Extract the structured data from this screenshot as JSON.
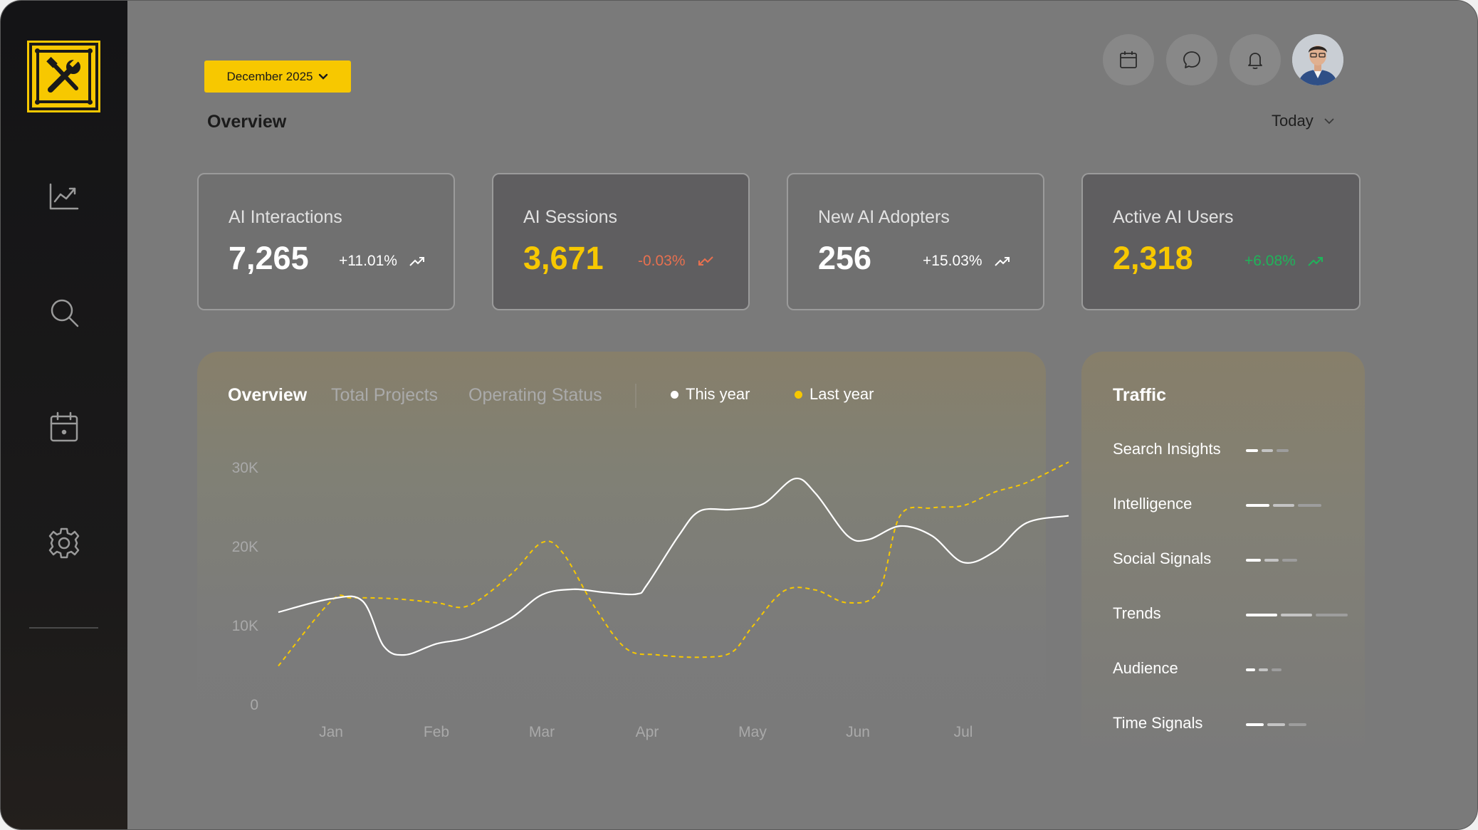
{
  "header": {
    "month_button": "December 2025",
    "page_title": "Overview",
    "period_select": "Today",
    "icons": [
      "calendar-icon",
      "chat-icon",
      "bell-icon"
    ],
    "avatar": "user-avatar"
  },
  "sidebar": {
    "logo": "tools-logo",
    "items": [
      {
        "icon": "chart-icon"
      },
      {
        "icon": "search-icon"
      },
      {
        "icon": "calendar-icon"
      },
      {
        "icon": "gear-icon"
      }
    ]
  },
  "kpis": [
    {
      "label": "AI Interactions",
      "value": "7,265",
      "change": "+11.01%",
      "trend": "up",
      "value_color": "#ffffff",
      "change_color": "#ffffff"
    },
    {
      "label": "AI Sessions",
      "value": "3,671",
      "change": "-0.03%",
      "trend": "down",
      "value_color": "#f7c800",
      "change_color": "#e8704f"
    },
    {
      "label": "New AI Adopters",
      "value": "256",
      "change": "+15.03%",
      "trend": "up",
      "value_color": "#ffffff",
      "change_color": "#ffffff"
    },
    {
      "label": "Active AI Users",
      "value": "2,318",
      "change": "+6.08%",
      "trend": "up",
      "value_color": "#f7c800",
      "change_color": "#1fb45a"
    }
  ],
  "chart_panel": {
    "tabs": [
      "Overview",
      "Total Projects",
      "Operating Status"
    ],
    "active_tab": "Overview",
    "legend": [
      {
        "name": "This year",
        "color": "#ffffff"
      },
      {
        "name": "Last year",
        "color": "#f7c800"
      }
    ]
  },
  "chart_data": {
    "type": "line",
    "x": [
      "Jan",
      "Feb",
      "Mar",
      "Apr",
      "May",
      "Jun",
      "Jul"
    ],
    "ylim": [
      0,
      30000
    ],
    "yticks": [
      "30K",
      "20K",
      "10K",
      "0"
    ],
    "grid": false,
    "legend_position": "top",
    "series": [
      {
        "name": "This year",
        "style": "solid",
        "color": "#ffffff",
        "points": [
          [
            0.5,
            11800
          ],
          [
            1.0,
            13500
          ],
          [
            1.3,
            13200
          ],
          [
            1.5,
            7500
          ],
          [
            1.7,
            6400
          ],
          [
            2.0,
            7800
          ],
          [
            2.3,
            8600
          ],
          [
            2.7,
            11000
          ],
          [
            3.0,
            14000
          ],
          [
            3.3,
            14700
          ],
          [
            3.6,
            14300
          ],
          [
            3.9,
            14100
          ],
          [
            4.0,
            15300
          ],
          [
            4.3,
            21500
          ],
          [
            4.5,
            24600
          ],
          [
            4.8,
            24800
          ],
          [
            5.1,
            25500
          ],
          [
            5.4,
            28700
          ],
          [
            5.6,
            26800
          ],
          [
            5.9,
            21500
          ],
          [
            6.1,
            21000
          ],
          [
            6.4,
            22700
          ],
          [
            6.7,
            21500
          ],
          [
            7.0,
            18100
          ],
          [
            7.3,
            19500
          ],
          [
            7.6,
            23100
          ],
          [
            8.0,
            24000
          ]
        ]
      },
      {
        "name": "Last year",
        "style": "dashed",
        "color": "#f7c800",
        "points": [
          [
            0.5,
            5000
          ],
          [
            1.0,
            13200
          ],
          [
            1.2,
            13600
          ],
          [
            1.6,
            13500
          ],
          [
            2.0,
            13000
          ],
          [
            2.3,
            12600
          ],
          [
            2.7,
            16500
          ],
          [
            3.0,
            20600
          ],
          [
            3.2,
            19300
          ],
          [
            3.5,
            12500
          ],
          [
            3.8,
            7200
          ],
          [
            4.1,
            6400
          ],
          [
            4.5,
            6100
          ],
          [
            4.8,
            6700
          ],
          [
            5.0,
            10000
          ],
          [
            5.3,
            14500
          ],
          [
            5.6,
            14600
          ],
          [
            5.9,
            13000
          ],
          [
            6.2,
            14500
          ],
          [
            6.4,
            24000
          ],
          [
            6.7,
            25000
          ],
          [
            7.0,
            25300
          ],
          [
            7.3,
            27000
          ],
          [
            7.6,
            28200
          ],
          [
            8.0,
            30800
          ]
        ]
      }
    ]
  },
  "traffic": {
    "title": "Traffic",
    "items": [
      {
        "label": "Search Insights",
        "segments": [
          0.3,
          0.35,
          0.35
        ]
      },
      {
        "label": "Intelligence",
        "segments": [
          0.32,
          0.32,
          0.36
        ]
      },
      {
        "label": "Social Signals",
        "segments": [
          0.3,
          0.32,
          0.38
        ]
      },
      {
        "label": "Trends",
        "segments": [
          0.31,
          0.31,
          0.38
        ]
      },
      {
        "label": "Audience",
        "segments": [
          0.3,
          0.3,
          0.4
        ]
      },
      {
        "label": "Time Signals",
        "segments": [
          0.3,
          0.33,
          0.37
        ]
      }
    ],
    "colors": [
      "#ffffff",
      "#c4c4c4",
      "#9d9d9d"
    ]
  }
}
